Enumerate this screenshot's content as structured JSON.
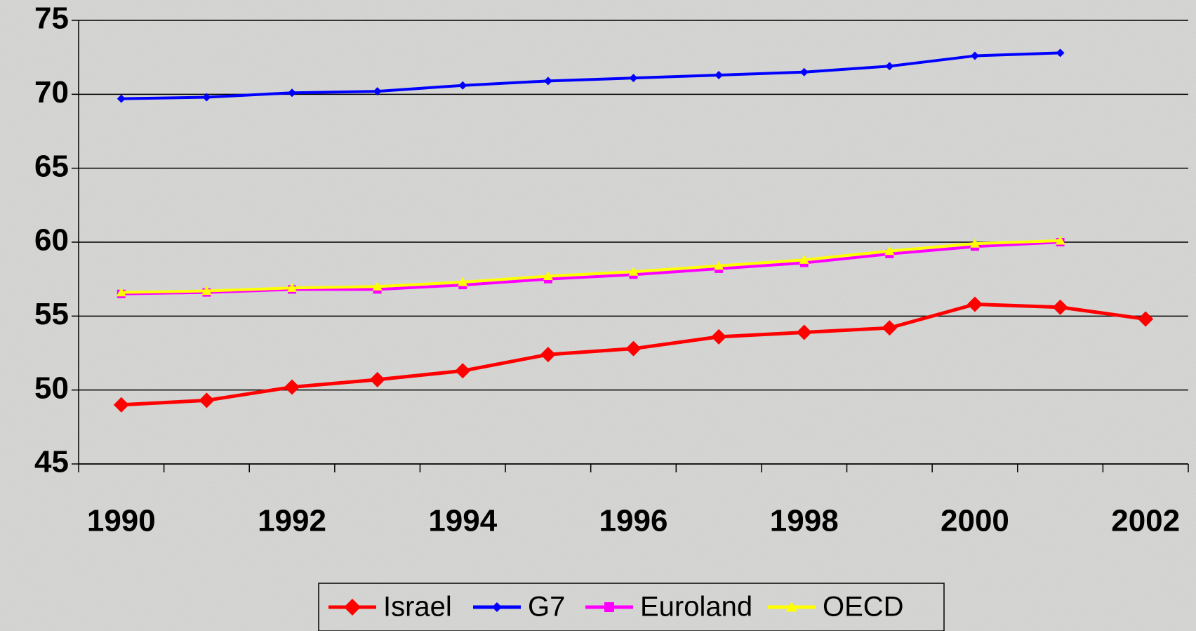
{
  "chart_data": {
    "type": "line",
    "categories": [
      "1990",
      null,
      "1992",
      null,
      "1994",
      null,
      "1996",
      null,
      "1998",
      null,
      "2000",
      null,
      "2002"
    ],
    "series": [
      {
        "name": "Israel",
        "color": "#ff0000",
        "marker": "diamond",
        "values": [
          49.0,
          49.3,
          50.2,
          50.7,
          51.3,
          52.4,
          52.8,
          53.6,
          53.9,
          54.2,
          55.8,
          55.6,
          54.8
        ]
      },
      {
        "name": "G7",
        "color": "#0000ff",
        "marker": "diamond",
        "values": [
          69.7,
          69.8,
          70.1,
          70.2,
          70.6,
          70.9,
          71.1,
          71.3,
          71.5,
          71.9,
          72.6,
          72.8,
          null
        ]
      },
      {
        "name": "Euroland",
        "color": "#ff00ff",
        "marker": "square",
        "values": [
          56.5,
          56.6,
          56.8,
          56.8,
          57.1,
          57.5,
          57.8,
          58.2,
          58.6,
          59.2,
          59.7,
          60.0,
          null
        ]
      },
      {
        "name": "OECD",
        "color": "#ffff00",
        "marker": "triangle",
        "values": [
          56.6,
          56.7,
          56.9,
          57.0,
          57.3,
          57.7,
          58.0,
          58.4,
          58.8,
          59.4,
          59.9,
          60.1,
          null
        ]
      }
    ],
    "ylim": [
      45,
      75
    ],
    "yticks": [
      45,
      50,
      55,
      60,
      65,
      70,
      75
    ],
    "grid": true,
    "legend": "bottom"
  }
}
